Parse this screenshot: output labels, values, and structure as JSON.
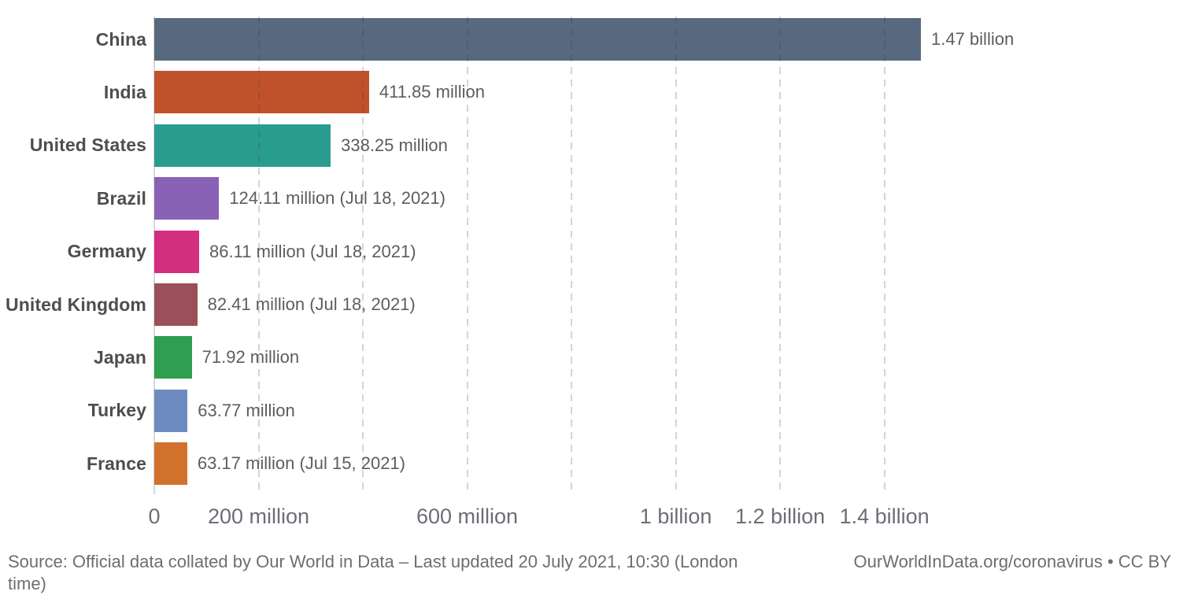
{
  "chart_data": {
    "type": "bar",
    "orientation": "horizontal",
    "title": "",
    "xlabel": "",
    "ylabel": "",
    "categories": [
      "China",
      "India",
      "United States",
      "Brazil",
      "Germany",
      "United Kingdom",
      "Japan",
      "Turkey",
      "France"
    ],
    "values": [
      1470000000,
      411850000,
      338250000,
      124110000,
      86110000,
      82410000,
      71920000,
      63770000,
      63170000
    ],
    "value_labels": [
      "1.47 billion",
      "411.85 million",
      "338.25 million",
      "124.11 million (Jul 18, 2021)",
      "86.11 million (Jul 18, 2021)",
      "82.41 million (Jul 18, 2021)",
      "71.92 million",
      "63.77 million",
      "63.17 million (Jul 15, 2021)"
    ],
    "bar_colors": [
      "#57687f",
      "#c0522b",
      "#2a9b8f",
      "#8a62b5",
      "#d42e80",
      "#9a505a",
      "#2f9e50",
      "#6d8bbf",
      "#d0712c"
    ],
    "xlim": [
      0,
      1470000000
    ],
    "x_gridlines": [
      200000000,
      400000000,
      600000000,
      800000000,
      1000000000,
      1200000000,
      1400000000
    ],
    "x_tick_labels": [
      {
        "value": 0,
        "label": "0"
      },
      {
        "value": 200000000,
        "label": "200 million"
      },
      {
        "value": 600000000,
        "label": "600 million"
      },
      {
        "value": 1000000000,
        "label": "1 billion"
      },
      {
        "value": 1200000000,
        "label": "1.2 billion"
      },
      {
        "value": 1400000000,
        "label": "1.4 billion"
      }
    ],
    "grid": true,
    "gridline_style": "dashed",
    "legend": "none",
    "value_label_position": "outside-end"
  },
  "footer": {
    "source_line1": "Source: Official data collated by Our World in Data – Last updated 20 July 2021, 10:30 (London",
    "source_line2": "time)",
    "watermark": "OurWorldInData.org/coronavirus • CC BY"
  },
  "colors": {
    "gridline": "#d4d4d4",
    "axis_line": "#d8d8d8",
    "country_label": "#4e4e4e",
    "value_label": "#5d5d5d",
    "tick_label": "#6b6e76",
    "footer_text": "#6e6e6e"
  }
}
